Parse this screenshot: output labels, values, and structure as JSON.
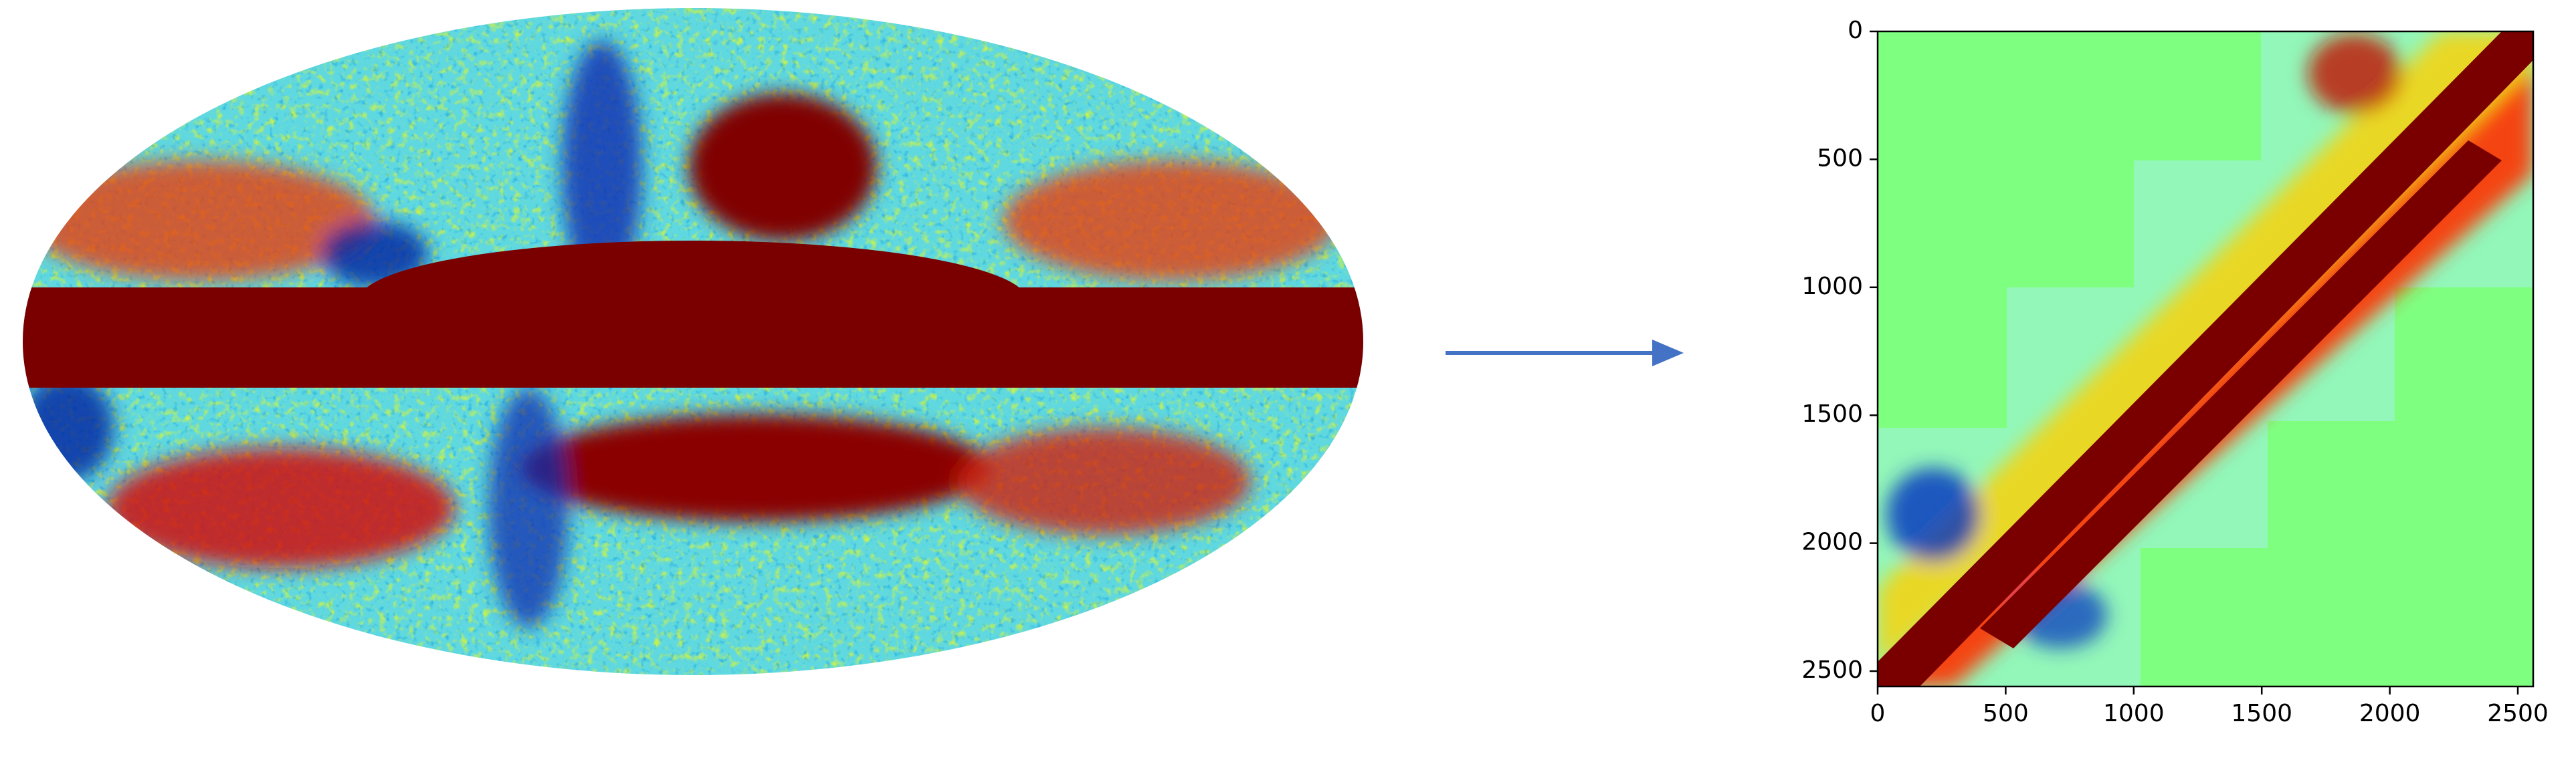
{
  "chart_data": {
    "type": "image",
    "xlim": [
      0,
      2560
    ],
    "ylim": [
      2560,
      0
    ],
    "xticks": [
      0,
      500,
      1000,
      1500,
      2000,
      2500
    ],
    "yticks": [
      0,
      500,
      1000,
      1500,
      2000,
      2500
    ]
  }
}
